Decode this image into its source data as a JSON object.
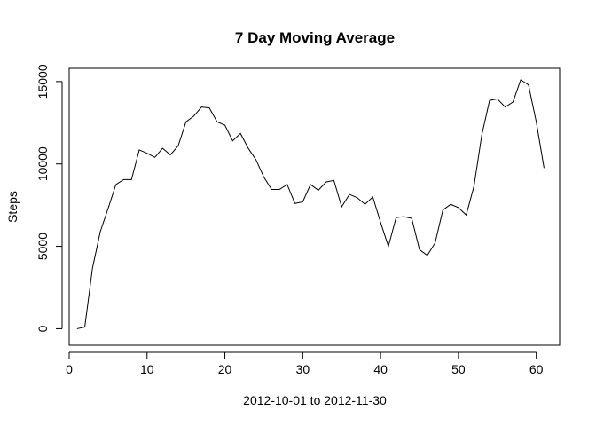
{
  "chart_data": {
    "type": "line",
    "title": "7 Day Moving Average",
    "xlabel": "2012-10-01  to  2012-11-30",
    "ylabel": "Steps",
    "xlim": [
      0,
      63
    ],
    "ylim": [
      -1000,
      15800
    ],
    "x_ticks": [
      0,
      10,
      20,
      30,
      40,
      50,
      60
    ],
    "y_ticks": [
      0,
      5000,
      10000,
      15000
    ],
    "grid": false,
    "series": [
      {
        "color": "#000000",
        "x": [
          1,
          2,
          3,
          4,
          5,
          6,
          7,
          8,
          9,
          10,
          11,
          12,
          13,
          14,
          15,
          16,
          17,
          18,
          19,
          20,
          21,
          22,
          23,
          24,
          25,
          26,
          27,
          28,
          29,
          30,
          31,
          32,
          33,
          34,
          35,
          36,
          37,
          38,
          39,
          40,
          41,
          42,
          43,
          44,
          45,
          46,
          47,
          48,
          49,
          50,
          51,
          52,
          53,
          54,
          55,
          56,
          57,
          58,
          59,
          60,
          61
        ],
        "values": [
          0,
          100,
          3700,
          5900,
          7300,
          8750,
          9050,
          9050,
          10850,
          10650,
          10400,
          10950,
          10550,
          11100,
          12550,
          12900,
          13450,
          13400,
          12550,
          12350,
          11400,
          11850,
          10950,
          10250,
          9200,
          8450,
          8450,
          8750,
          7600,
          7700,
          8750,
          8400,
          8900,
          9000,
          7400,
          8150,
          7950,
          7550,
          8000,
          6450,
          5000,
          6750,
          6800,
          6700,
          4800,
          4450,
          5200,
          7200,
          7550,
          7350,
          6900,
          8650,
          11750,
          13850,
          13950,
          13450,
          13750,
          15100,
          14800,
          12550,
          9750
        ]
      }
    ]
  }
}
